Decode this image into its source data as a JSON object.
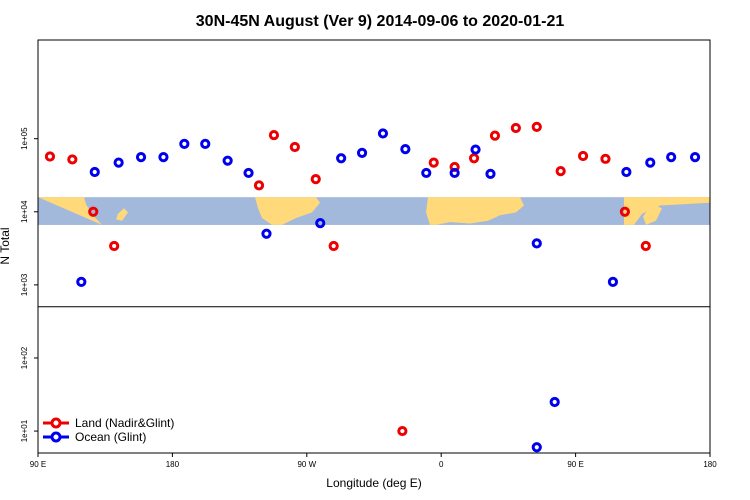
{
  "chart_data": {
    "type": "scatter",
    "title": "30N-45N August (Ver 9)   2014-09-06 to 2020-01-21",
    "xlabel": "Longitude (deg E)",
    "ylabel": "N Total",
    "xlim": [
      90,
      540
    ],
    "ylim_log10": [
      0.7,
      6.35
    ],
    "y_scale": "log",
    "x_ticks": [
      {
        "value": 90,
        "label": "90 E"
      },
      {
        "value": 180,
        "label": "180"
      },
      {
        "value": 270,
        "label": "90 W"
      },
      {
        "value": 360,
        "label": "0"
      },
      {
        "value": 450,
        "label": "90 E"
      },
      {
        "value": 540,
        "label": "180"
      }
    ],
    "y_ticks": [
      {
        "log10": 1,
        "label": "1e+01"
      },
      {
        "log10": 2,
        "label": "1e+02"
      },
      {
        "log10": 3,
        "label": "1e+03"
      },
      {
        "log10": 4,
        "label": "1e+04"
      },
      {
        "log10": 5,
        "label": "1e+05"
      }
    ],
    "map_band_log10": [
      3.82,
      4.2
    ],
    "divider_log10": 2.7,
    "legend_position": "bottom-left",
    "series": [
      {
        "name": "Land (Nadir&Glint)",
        "color": "#ee0000",
        "points": [
          {
            "lon": 98,
            "n": 57000
          },
          {
            "lon": 113,
            "n": 52000
          },
          {
            "lon": 127,
            "n": 10000
          },
          {
            "lon": 141,
            "n": 3400
          },
          {
            "lon": 238,
            "n": 23000
          },
          {
            "lon": 248,
            "n": 112000
          },
          {
            "lon": 262,
            "n": 77000
          },
          {
            "lon": 276,
            "n": 28000
          },
          {
            "lon": 288,
            "n": 3400
          },
          {
            "lon": 334,
            "n": 10
          },
          {
            "lon": 355,
            "n": 47000
          },
          {
            "lon": 369,
            "n": 41000
          },
          {
            "lon": 382,
            "n": 54000
          },
          {
            "lon": 396,
            "n": 110000
          },
          {
            "lon": 410,
            "n": 140000
          },
          {
            "lon": 424,
            "n": 145000
          },
          {
            "lon": 440,
            "n": 36000
          },
          {
            "lon": 455,
            "n": 58000
          },
          {
            "lon": 470,
            "n": 53000
          },
          {
            "lon": 483,
            "n": 10000
          },
          {
            "lon": 497,
            "n": 3400
          }
        ]
      },
      {
        "name": "Ocean (Glint)",
        "color": "#0000ee",
        "points": [
          {
            "lon": 119,
            "n": 1100
          },
          {
            "lon": 128,
            "n": 35000
          },
          {
            "lon": 144,
            "n": 47000
          },
          {
            "lon": 159,
            "n": 56000
          },
          {
            "lon": 174,
            "n": 56000
          },
          {
            "lon": 188,
            "n": 85000
          },
          {
            "lon": 202,
            "n": 85000
          },
          {
            "lon": 217,
            "n": 50000
          },
          {
            "lon": 231,
            "n": 34000
          },
          {
            "lon": 243,
            "n": 5000
          },
          {
            "lon": 279,
            "n": 7000
          },
          {
            "lon": 293,
            "n": 54000
          },
          {
            "lon": 307,
            "n": 64000
          },
          {
            "lon": 321,
            "n": 118000
          },
          {
            "lon": 336,
            "n": 72000
          },
          {
            "lon": 350,
            "n": 34000
          },
          {
            "lon": 369,
            "n": 34000
          },
          {
            "lon": 383,
            "n": 71000
          },
          {
            "lon": 393,
            "n": 33000
          },
          {
            "lon": 424,
            "n": 3700
          },
          {
            "lon": 424,
            "n": 6
          },
          {
            "lon": 436,
            "n": 25
          },
          {
            "lon": 475,
            "n": 1100
          },
          {
            "lon": 484,
            "n": 35000
          },
          {
            "lon": 500,
            "n": 47000
          },
          {
            "lon": 514,
            "n": 56000
          },
          {
            "lon": 530,
            "n": 56000
          }
        ]
      }
    ]
  }
}
